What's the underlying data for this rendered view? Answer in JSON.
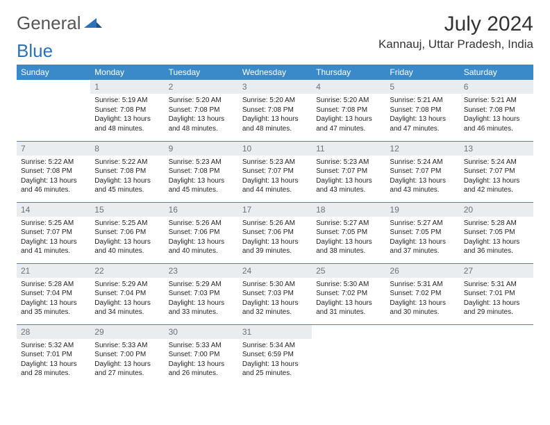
{
  "logo_text_a": "General",
  "logo_text_b": "Blue",
  "logo_color_gray": "#6b6b6b",
  "logo_color_blue": "#2d72b8",
  "title": "July 2024",
  "location": "Kannauj, Uttar Pradesh, India",
  "header_bg": "#3a8ac9",
  "header_fg": "#ffffff",
  "daynum_bg": "#e9edf0",
  "daynum_fg": "#6a7278",
  "border_color": "#3a8ac9",
  "body_fontsize": 10,
  "daynum_fontsize": 12,
  "weekdays": [
    "Sunday",
    "Monday",
    "Tuesday",
    "Wednesday",
    "Thursday",
    "Friday",
    "Saturday"
  ],
  "weeks": [
    [
      null,
      {
        "d": "1",
        "sr": "5:19 AM",
        "ss": "7:08 PM",
        "dl": "13 hours and 48 minutes."
      },
      {
        "d": "2",
        "sr": "5:20 AM",
        "ss": "7:08 PM",
        "dl": "13 hours and 48 minutes."
      },
      {
        "d": "3",
        "sr": "5:20 AM",
        "ss": "7:08 PM",
        "dl": "13 hours and 48 minutes."
      },
      {
        "d": "4",
        "sr": "5:20 AM",
        "ss": "7:08 PM",
        "dl": "13 hours and 47 minutes."
      },
      {
        "d": "5",
        "sr": "5:21 AM",
        "ss": "7:08 PM",
        "dl": "13 hours and 47 minutes."
      },
      {
        "d": "6",
        "sr": "5:21 AM",
        "ss": "7:08 PM",
        "dl": "13 hours and 46 minutes."
      }
    ],
    [
      {
        "d": "7",
        "sr": "5:22 AM",
        "ss": "7:08 PM",
        "dl": "13 hours and 46 minutes."
      },
      {
        "d": "8",
        "sr": "5:22 AM",
        "ss": "7:08 PM",
        "dl": "13 hours and 45 minutes."
      },
      {
        "d": "9",
        "sr": "5:23 AM",
        "ss": "7:08 PM",
        "dl": "13 hours and 45 minutes."
      },
      {
        "d": "10",
        "sr": "5:23 AM",
        "ss": "7:07 PM",
        "dl": "13 hours and 44 minutes."
      },
      {
        "d": "11",
        "sr": "5:23 AM",
        "ss": "7:07 PM",
        "dl": "13 hours and 43 minutes."
      },
      {
        "d": "12",
        "sr": "5:24 AM",
        "ss": "7:07 PM",
        "dl": "13 hours and 43 minutes."
      },
      {
        "d": "13",
        "sr": "5:24 AM",
        "ss": "7:07 PM",
        "dl": "13 hours and 42 minutes."
      }
    ],
    [
      {
        "d": "14",
        "sr": "5:25 AM",
        "ss": "7:07 PM",
        "dl": "13 hours and 41 minutes."
      },
      {
        "d": "15",
        "sr": "5:25 AM",
        "ss": "7:06 PM",
        "dl": "13 hours and 40 minutes."
      },
      {
        "d": "16",
        "sr": "5:26 AM",
        "ss": "7:06 PM",
        "dl": "13 hours and 40 minutes."
      },
      {
        "d": "17",
        "sr": "5:26 AM",
        "ss": "7:06 PM",
        "dl": "13 hours and 39 minutes."
      },
      {
        "d": "18",
        "sr": "5:27 AM",
        "ss": "7:05 PM",
        "dl": "13 hours and 38 minutes."
      },
      {
        "d": "19",
        "sr": "5:27 AM",
        "ss": "7:05 PM",
        "dl": "13 hours and 37 minutes."
      },
      {
        "d": "20",
        "sr": "5:28 AM",
        "ss": "7:05 PM",
        "dl": "13 hours and 36 minutes."
      }
    ],
    [
      {
        "d": "21",
        "sr": "5:28 AM",
        "ss": "7:04 PM",
        "dl": "13 hours and 35 minutes."
      },
      {
        "d": "22",
        "sr": "5:29 AM",
        "ss": "7:04 PM",
        "dl": "13 hours and 34 minutes."
      },
      {
        "d": "23",
        "sr": "5:29 AM",
        "ss": "7:03 PM",
        "dl": "13 hours and 33 minutes."
      },
      {
        "d": "24",
        "sr": "5:30 AM",
        "ss": "7:03 PM",
        "dl": "13 hours and 32 minutes."
      },
      {
        "d": "25",
        "sr": "5:30 AM",
        "ss": "7:02 PM",
        "dl": "13 hours and 31 minutes."
      },
      {
        "d": "26",
        "sr": "5:31 AM",
        "ss": "7:02 PM",
        "dl": "13 hours and 30 minutes."
      },
      {
        "d": "27",
        "sr": "5:31 AM",
        "ss": "7:01 PM",
        "dl": "13 hours and 29 minutes."
      }
    ],
    [
      {
        "d": "28",
        "sr": "5:32 AM",
        "ss": "7:01 PM",
        "dl": "13 hours and 28 minutes."
      },
      {
        "d": "29",
        "sr": "5:33 AM",
        "ss": "7:00 PM",
        "dl": "13 hours and 27 minutes."
      },
      {
        "d": "30",
        "sr": "5:33 AM",
        "ss": "7:00 PM",
        "dl": "13 hours and 26 minutes."
      },
      {
        "d": "31",
        "sr": "5:34 AM",
        "ss": "6:59 PM",
        "dl": "13 hours and 25 minutes."
      },
      null,
      null,
      null
    ]
  ],
  "labels": {
    "sunrise": "Sunrise:",
    "sunset": "Sunset:",
    "daylight": "Daylight:"
  }
}
